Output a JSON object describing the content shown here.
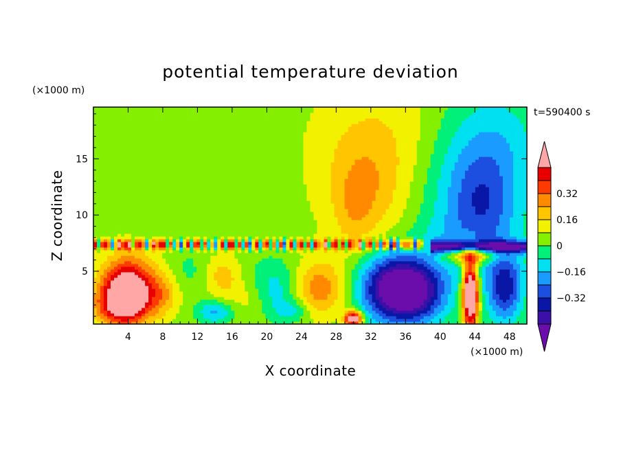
{
  "chart_data": {
    "type": "heatmap",
    "title": "potential temperature deviation",
    "xlabel": "X coordinate",
    "ylabel": "Z coordinate",
    "x_unit": "(×1000 m)",
    "y_unit": "(×1000 m)",
    "time_label": "t=590400 s",
    "xlim": [
      0,
      50
    ],
    "ylim": [
      0.3,
      19.6
    ],
    "x_ticks": [
      4,
      8,
      12,
      16,
      20,
      24,
      28,
      32,
      36,
      40,
      44,
      48
    ],
    "y_ticks": [
      5,
      10,
      15
    ],
    "colorbar": {
      "levels": [
        -0.48,
        -0.4,
        -0.32,
        -0.24,
        -0.16,
        -0.08,
        0,
        0.08,
        0.16,
        0.24,
        0.32,
        0.4,
        0.48
      ],
      "colors": [
        "#6a0dab",
        "#3a10a8",
        "#0a17a6",
        "#1c4fe0",
        "#1a9bff",
        "#00e0f0",
        "#00f07a",
        "#84f000",
        "#f2f200",
        "#ffc600",
        "#ff8a00",
        "#ff3a00",
        "#e80000",
        "#ffa6a6"
      ],
      "labels": [
        {
          "value": 0.32,
          "text": "0.32"
        },
        {
          "value": 0.16,
          "text": "0.16"
        },
        {
          "value": 0,
          "text": "0"
        },
        {
          "value": -0.16,
          "text": "−0.16"
        },
        {
          "value": -0.32,
          "text": "−0.32"
        }
      ]
    },
    "grid": false,
    "blobs": [
      {
        "x": 34,
        "z": 16,
        "rx": 9,
        "rz": 7,
        "v": 0.12
      },
      {
        "x": 31,
        "z": 12,
        "rx": 4,
        "rz": 5,
        "v": 0.14
      },
      {
        "x": 30,
        "z": 10,
        "rx": 2,
        "rz": 3,
        "v": 0.06
      },
      {
        "x": 44,
        "z": 12,
        "rx": 6,
        "rz": 8,
        "v": -0.3
      },
      {
        "x": 45,
        "z": 11,
        "rx": 3,
        "rz": 4,
        "v": -0.1
      },
      {
        "x": 40,
        "z": 8,
        "rx": 3,
        "rz": 2,
        "v": -0.04
      },
      {
        "x": 48,
        "z": 17,
        "rx": 4,
        "rz": 4,
        "v": -0.06
      },
      {
        "x": 0.5,
        "z": 17,
        "rx": 2,
        "rz": 6,
        "v": -0.04
      },
      {
        "x": 4,
        "z": 3.5,
        "rx": 3,
        "rz": 2.8,
        "v": 0.56
      },
      {
        "x": 3,
        "z": 2,
        "rx": 3,
        "rz": 1.8,
        "v": 0.3
      },
      {
        "x": 8,
        "z": 3,
        "rx": 2,
        "rz": 2,
        "v": 0.16
      },
      {
        "x": 35,
        "z": 3.5,
        "rx": 4,
        "rz": 3,
        "v": -0.68
      },
      {
        "x": 38,
        "z": 3,
        "rx": 3,
        "rz": 2.5,
        "v": -0.2
      },
      {
        "x": 43.5,
        "z": 3,
        "rx": 0.9,
        "rz": 3,
        "v": 0.8
      },
      {
        "x": 43.5,
        "z": 6.5,
        "rx": 3,
        "rz": 0.8,
        "v": 0.4
      },
      {
        "x": 47.5,
        "z": 3.5,
        "rx": 2,
        "rz": 3,
        "v": -0.36
      },
      {
        "x": 26,
        "z": 3.5,
        "rx": 3,
        "rz": 2.5,
        "v": 0.26
      },
      {
        "x": 30,
        "z": 0.8,
        "rx": 1,
        "rz": 0.7,
        "v": 0.6
      },
      {
        "x": 21,
        "z": 3.5,
        "rx": 3,
        "rz": 2.5,
        "v": -0.16
      },
      {
        "x": 15,
        "z": 4.5,
        "rx": 2,
        "rz": 2,
        "v": 0.16
      },
      {
        "x": 14,
        "z": 1.4,
        "rx": 2,
        "rz": 1,
        "v": -0.22
      },
      {
        "x": 18,
        "z": 2.5,
        "rx": 2,
        "rz": 1.8,
        "v": 0.08
      },
      {
        "x": 11,
        "z": 5,
        "rx": 2,
        "rz": 2,
        "v": -0.06
      },
      {
        "x": 23,
        "z": 1.5,
        "rx": 2,
        "rz": 1,
        "v": -0.14
      }
    ],
    "inversion_layer": {
      "z_center": 7.4,
      "thickness": 0.45,
      "x_start": 0,
      "x_end": 38,
      "pattern": [
        0.4,
        -0.1,
        0.3,
        -0.2,
        0.36,
        0.2,
        -0.3,
        0.1,
        0.44,
        -0.16,
        0.24,
        0.38
      ]
    },
    "right_inversion": {
      "x_start": 39,
      "x_end": 50,
      "z_center": 7.2,
      "v": -0.44
    }
  }
}
